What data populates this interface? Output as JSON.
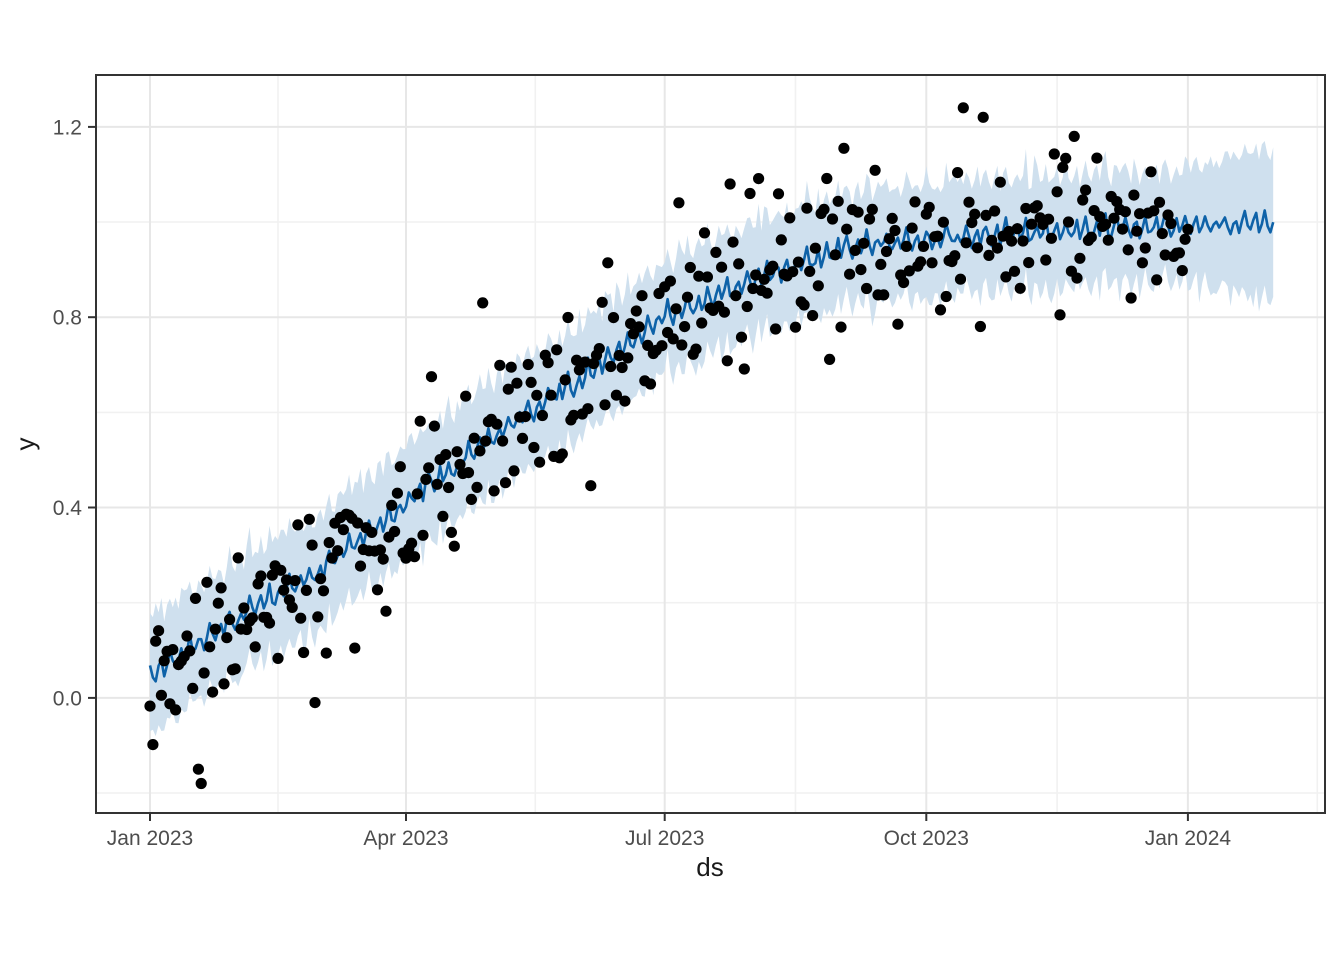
{
  "chart_data": {
    "type": "scatter",
    "subtype": "prophet-forecast (observed points + forecast line + uncertainty band)",
    "title": "",
    "xlabel": "ds",
    "ylabel": "y",
    "legend": "none",
    "grid": "on",
    "x_axis": {
      "unit": "days since 2023-01-01",
      "domain": [
        -19,
        413.2
      ],
      "major_ticks": [
        {
          "day": 0,
          "label": "Jan 2023"
        },
        {
          "day": 90,
          "label": "Apr 2023"
        },
        {
          "day": 181,
          "label": "Jul 2023"
        },
        {
          "day": 273,
          "label": "Oct 2023"
        },
        {
          "day": 365,
          "label": "Jan 2024"
        }
      ],
      "minor_tick_days": [
        45,
        135.5,
        227,
        319,
        410.5
      ]
    },
    "y_axis": {
      "domain": [
        -0.242,
        1.309
      ],
      "major_ticks": [
        {
          "value": 0.0,
          "label": "0.0"
        },
        {
          "value": 0.4,
          "label": "0.4"
        },
        {
          "value": 0.8,
          "label": "0.8"
        },
        {
          "value": 1.2,
          "label": "1.2"
        }
      ],
      "minor_tick_values": [
        -0.2,
        0.2,
        0.6,
        1.0
      ]
    },
    "series": [
      {
        "name": "observed y (daily points)",
        "kind": "scatter",
        "color": "#000000",
        "marker_radius": 5.6,
        "n_points": 366,
        "days_range": [
          0,
          365
        ]
      },
      {
        "name": "forecast yhat",
        "kind": "line",
        "color": "#0E62A8",
        "width": 2.6,
        "days_range": [
          0,
          395
        ]
      },
      {
        "name": "uncertainty interval",
        "kind": "band",
        "fill": "#CFE0EE",
        "days_range": [
          0,
          395
        ]
      }
    ],
    "generator": {
      "seed": 42,
      "trend_anchors": [
        [
          0,
          0.05
        ],
        [
          31,
          0.17
        ],
        [
          59,
          0.27
        ],
        [
          90,
          0.41
        ],
        [
          120,
          0.55
        ],
        [
          151,
          0.67
        ],
        [
          181,
          0.8
        ],
        [
          212,
          0.88
        ],
        [
          243,
          0.945
        ],
        [
          273,
          0.965
        ],
        [
          304,
          0.98
        ],
        [
          334,
          0.99
        ],
        [
          365,
          0.995
        ],
        [
          396,
          1.0
        ]
      ],
      "weekly_pattern": [
        0.024,
        -0.008,
        -0.019,
        -0.003,
        0.011,
        -0.018,
        -0.002
      ],
      "obs_noise_sd": 0.08,
      "line_noise_sd": 0.006,
      "band": {
        "base_halfwidth": 0.105,
        "end_halfwidth": 0.145,
        "widen_after_day": 365,
        "edge_jitter_sd": 0.018
      },
      "outlier_overrides": [
        [
          17,
          -0.15
        ],
        [
          18,
          -0.18
        ],
        [
          58,
          -0.01
        ],
        [
          117,
          0.83
        ],
        [
          204,
          1.08
        ],
        [
          211,
          1.06
        ],
        [
          244,
          1.155
        ],
        [
          286,
          1.24
        ],
        [
          293,
          1.22
        ],
        [
          325,
          1.18
        ]
      ]
    },
    "style": {
      "outer_background": "#FFFFFF",
      "panel_background": "#FFFFFF",
      "panel_border_color": "#333333",
      "panel_border_width": 2,
      "grid_major_color": "#E7E7E7",
      "grid_minor_color": "#F1F1F1",
      "tick_mark_color": "#333333",
      "tick_label_color": "#4D4D4D",
      "axis_title_color": "#1A1A1A",
      "point_color": "#000000",
      "line_color": "#0E62A8",
      "band_fill": "#CFE0EE"
    }
  }
}
